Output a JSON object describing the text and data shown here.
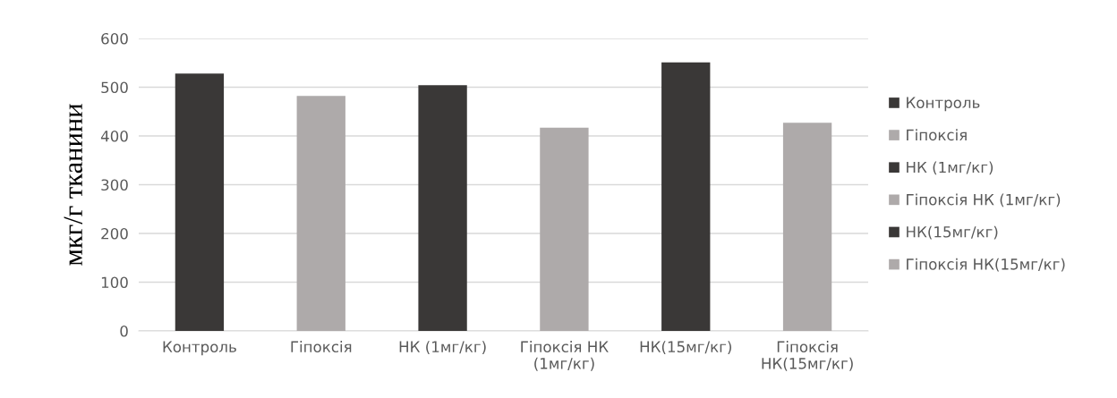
{
  "chart_data": {
    "type": "bar",
    "ylabel": "мкг/г тканини",
    "categories": [
      "Контроль",
      "Гіпоксія",
      "НК (1мг/кг)",
      "Гіпоксія НК (1мг/кг)",
      "НК(15мг/кг)",
      "Гіпоксія НК(15мг/кг)"
    ],
    "series": [
      {
        "name": "Контроль",
        "color": "#3a3837",
        "values": [
          528,
          null,
          null,
          null,
          null,
          null
        ]
      },
      {
        "name": "Гіпоксія",
        "color": "#aeaaaa",
        "values": [
          null,
          482,
          null,
          null,
          null,
          null
        ]
      },
      {
        "name": "НК (1мг/кг)",
        "color": "#3a3837",
        "values": [
          null,
          null,
          504,
          null,
          null,
          null
        ]
      },
      {
        "name": "Гіпоксія НК (1мг/кг)",
        "color": "#aeaaaa",
        "values": [
          null,
          null,
          null,
          417,
          null,
          null
        ]
      },
      {
        "name": "НК(15мг/кг)",
        "color": "#3a3837",
        "values": [
          null,
          null,
          null,
          null,
          551,
          null
        ]
      },
      {
        "name": "Гіпоксія НК(15мг/кг)",
        "color": "#aeaaaa",
        "values": [
          null,
          null,
          null,
          null,
          null,
          427
        ]
      }
    ],
    "ylim": [
      0,
      600
    ],
    "yticks": [
      0,
      100,
      200,
      300,
      400,
      500,
      600
    ],
    "grid": "y",
    "legend": "right"
  }
}
